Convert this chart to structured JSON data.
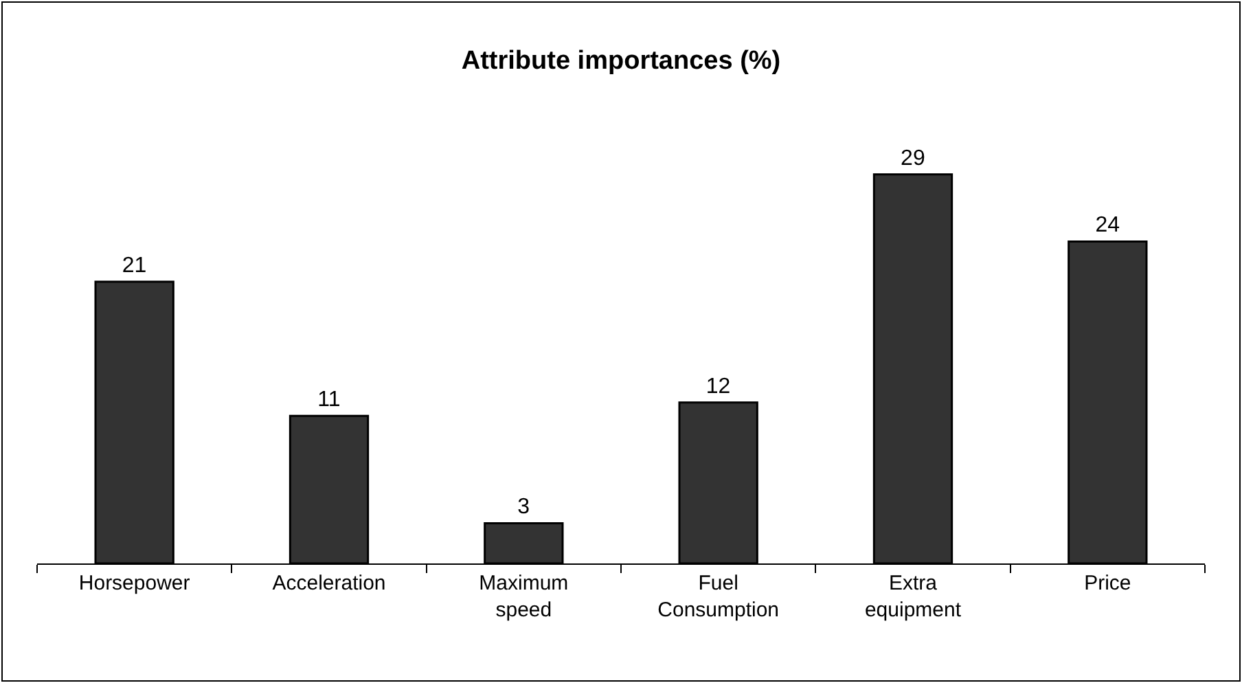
{
  "chart_data": {
    "type": "bar",
    "title": "Attribute importances (%)",
    "categories": [
      "Horsepower",
      "Acceleration",
      "Maximum speed",
      "Fuel Consumption",
      "Extra equipment",
      "Price"
    ],
    "values": [
      21,
      11,
      3,
      12,
      29,
      24
    ],
    "color": "#333333",
    "data_labels": true
  }
}
